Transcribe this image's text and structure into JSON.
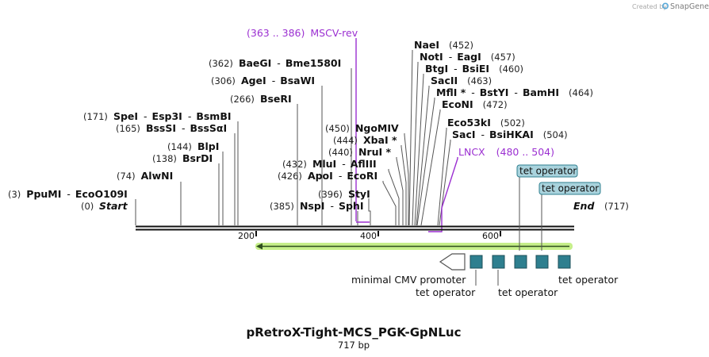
{
  "credit": {
    "created_by": "Created by",
    "brand": "SnapGene",
    "icon": "snapgene-logo-icon"
  },
  "map": {
    "title": "pRetroX-Tight-MCS_PGK-GpNLuc",
    "length": "717 bp",
    "start_label": "Start",
    "start_pos": "(0)",
    "end_label": "End",
    "end_pos": "(717)",
    "ruler_ticks": [
      "200",
      "400",
      "600"
    ]
  },
  "sites": [
    {
      "pos": "(3)",
      "names": [
        "PpuMI",
        "EcoO109I"
      ]
    },
    {
      "pos": "(74)",
      "names": [
        "AlwNI"
      ]
    },
    {
      "pos": "(138)",
      "names": [
        "BsrDI"
      ]
    },
    {
      "pos": "(144)",
      "names": [
        "BlpI"
      ]
    },
    {
      "pos": "(165)",
      "names": [
        "BssSI",
        "BssSαI"
      ]
    },
    {
      "pos": "(171)",
      "names": [
        "SpeI",
        "Esp3I",
        "BsmBI"
      ]
    },
    {
      "pos": "(266)",
      "names": [
        "BseRI"
      ]
    },
    {
      "pos": "(306)",
      "names": [
        "AgeI",
        "BsaWI"
      ]
    },
    {
      "pos": "(362)",
      "names": [
        "BaeGI",
        "Bme1580I"
      ]
    },
    {
      "pos": "(385)",
      "names": [
        "NspI",
        "SphI"
      ]
    },
    {
      "pos": "(396)",
      "names": [
        "StyI"
      ]
    },
    {
      "pos": "(426)",
      "names": [
        "ApoI",
        "EcoRI"
      ]
    },
    {
      "pos": "(432)",
      "names": [
        "MluI",
        "AflIII"
      ]
    },
    {
      "pos": "(440)",
      "names": [
        "NruI *"
      ]
    },
    {
      "pos": "(444)",
      "names": [
        "XbaI *"
      ]
    },
    {
      "pos": "(450)",
      "names": [
        "NgoMIV"
      ]
    },
    {
      "pos": "(452)",
      "names": [
        "NaeI"
      ]
    },
    {
      "pos": "(457)",
      "names": [
        "NotI",
        "EagI"
      ]
    },
    {
      "pos": "(460)",
      "names": [
        "BtgI",
        "BsiEI"
      ]
    },
    {
      "pos": "(463)",
      "names": [
        "SacII"
      ]
    },
    {
      "pos": "(464)",
      "names": [
        "MflI *",
        "BstYI",
        "BamHI"
      ]
    },
    {
      "pos": "(472)",
      "names": [
        "EcoNI"
      ]
    },
    {
      "pos": "(502)",
      "names": [
        "Eco53kI"
      ]
    },
    {
      "pos": "(504)",
      "names": [
        "SacI",
        "BsiHKAI"
      ]
    }
  ],
  "primers": [
    {
      "range": "(363 .. 386)",
      "name": "MSCV-rev"
    },
    {
      "name": "LNCX",
      "range": "(480 .. 504)"
    }
  ],
  "features": {
    "tet_tags": [
      "tet operator",
      "tet operator"
    ],
    "bottom_labels": [
      "minimal CMV promoter",
      "tet operator",
      "tet operator",
      "tet operator"
    ]
  },
  "colors": {
    "primer": "#9b2fd1",
    "box": "#2e7f8f",
    "tag_fill": "#a9d3dd",
    "arrow_glow": "#c6ef8a"
  }
}
